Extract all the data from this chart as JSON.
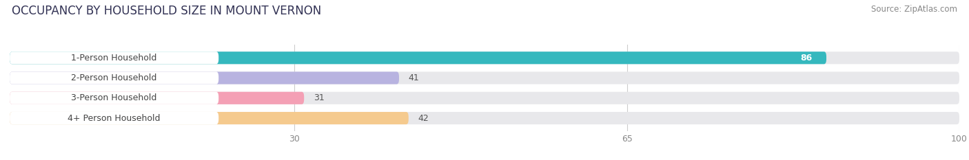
{
  "title": "OCCUPANCY BY HOUSEHOLD SIZE IN MOUNT VERNON",
  "source": "Source: ZipAtlas.com",
  "categories": [
    "1-Person Household",
    "2-Person Household",
    "3-Person Household",
    "4+ Person Household"
  ],
  "values": [
    86,
    41,
    31,
    42
  ],
  "bar_colors": [
    "#35b8be",
    "#b8b3e0",
    "#f4a0b5",
    "#f5ca8e"
  ],
  "value_inside": [
    true,
    false,
    false,
    false
  ],
  "xlim": [
    0,
    100
  ],
  "xticks": [
    30,
    65,
    100
  ],
  "background_color": "#ffffff",
  "bar_bg_color": "#e8e8eb",
  "title_fontsize": 12,
  "source_fontsize": 8.5,
  "bar_height": 0.62,
  "label_fontsize": 9,
  "value_fontsize": 9
}
